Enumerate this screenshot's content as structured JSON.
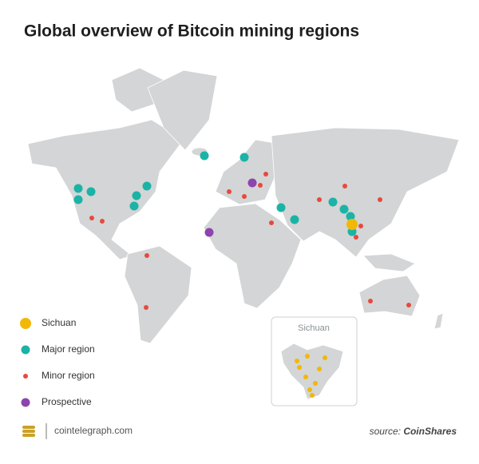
{
  "header": {
    "title": "Global overview of Bitcoin mining regions"
  },
  "legend": [
    {
      "label": "Sichuan",
      "color": "#f2b807"
    },
    {
      "label": "Major region",
      "color": "#1bb3a6"
    },
    {
      "label": "Minor region",
      "color": "#e8493c"
    },
    {
      "label": "Prospective",
      "color": "#8e44ad"
    }
  ],
  "inset": {
    "title": "Sichuan"
  },
  "footer": {
    "brand": "cointelegraph.com",
    "source_prefix": "source:",
    "source_name": "CoinShares"
  }
}
